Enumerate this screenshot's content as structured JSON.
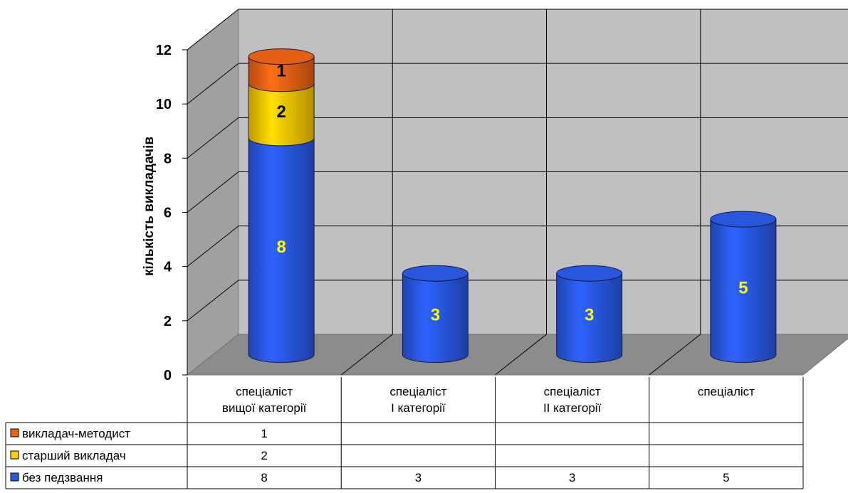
{
  "chart_data": {
    "type": "bar",
    "style": "3d-stacked-cylinder",
    "ylabel": "кількість викладачів",
    "xlabel": "",
    "ylim": [
      0,
      12
    ],
    "yticks": [
      "0",
      "2",
      "4",
      "6",
      "8",
      "10",
      "12"
    ],
    "grid": true,
    "legend": "data-table-below",
    "categories": [
      [
        "спеціаліст",
        "вищої категорії"
      ],
      [
        "спеціаліст",
        "І категорії"
      ],
      [
        "спеціаліст",
        "ІІ категорії"
      ],
      [
        "спеціаліст"
      ]
    ],
    "series": [
      {
        "name": "без педзвання",
        "color": "#2a5ae8",
        "values": [
          8,
          3,
          3,
          5
        ]
      },
      {
        "name": "старший викладач",
        "color": "#ffcc00",
        "values": [
          2,
          null,
          null,
          null
        ]
      },
      {
        "name": "викладач-методист",
        "color": "#f06414",
        "values": [
          1,
          null,
          null,
          null
        ]
      }
    ],
    "data_labels": [
      [
        "8",
        "3",
        "3",
        "5"
      ],
      [
        "2",
        "",
        "",
        ""
      ],
      [
        "1",
        "",
        "",
        ""
      ]
    ],
    "table_rows": [
      {
        "name": "викладач-методист",
        "color": "#f06414",
        "cells": [
          "1",
          "",
          "",
          ""
        ]
      },
      {
        "name": "старший викладач",
        "color": "#ffcc00",
        "cells": [
          "2",
          "",
          "",
          ""
        ]
      },
      {
        "name": "без педзвання",
        "color": "#2a5ae8",
        "cells": [
          "8",
          "3",
          "3",
          "5"
        ]
      }
    ],
    "label_colors": {
      "dark": "#000000",
      "light": "#ffff00"
    }
  }
}
